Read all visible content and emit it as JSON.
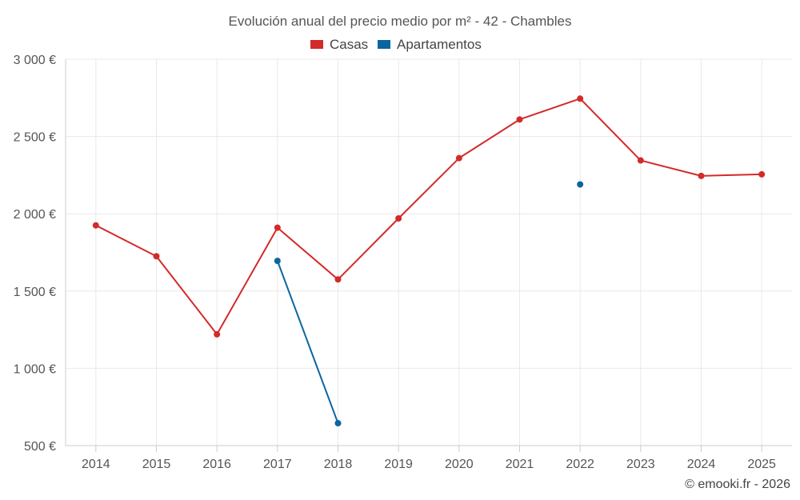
{
  "chart_data": {
    "type": "line",
    "title": "Evolución anual del precio medio por m² - 42 - Chambles",
    "categories": [
      "2014",
      "2015",
      "2016",
      "2017",
      "2018",
      "2019",
      "2020",
      "2021",
      "2022",
      "2023",
      "2024",
      "2025"
    ],
    "series": [
      {
        "name": "Casas",
        "color": "#d42a2a",
        "values": [
          1925,
          1725,
          1220,
          1910,
          1575,
          1970,
          2360,
          2610,
          2745,
          2345,
          2245,
          2255
        ]
      },
      {
        "name": "Apartamentos",
        "color": "#0b66a0",
        "values": [
          null,
          null,
          null,
          1695,
          645,
          null,
          null,
          null,
          2190,
          null,
          null,
          null
        ]
      }
    ],
    "ylim": [
      500,
      3000
    ],
    "yticks": [
      500,
      1000,
      1500,
      2000,
      2500,
      3000
    ],
    "ytick_labels": [
      "500 €",
      "1 000 €",
      "1 500 €",
      "2 000 €",
      "2 500 €",
      "3 000 €"
    ],
    "xlabel": "",
    "ylabel": "",
    "grid": true,
    "legend_position": "top-center"
  },
  "credit": "© emooki.fr - 2026"
}
